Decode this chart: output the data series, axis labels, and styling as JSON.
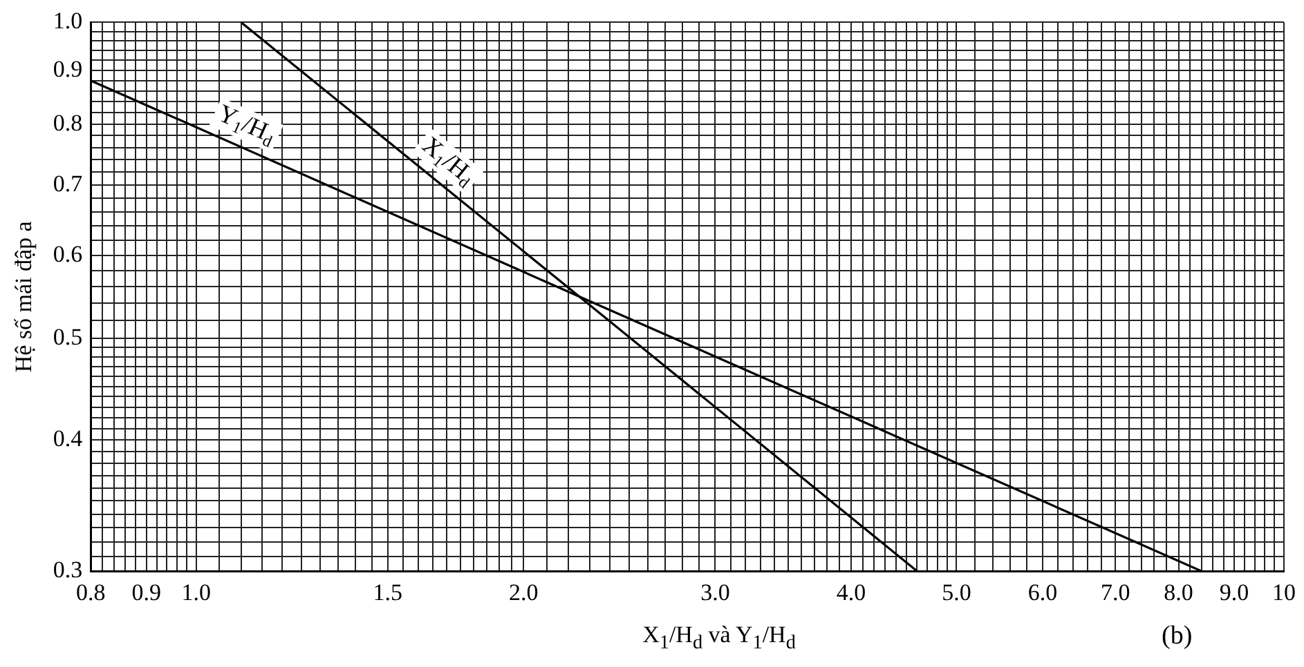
{
  "chart_data": {
    "type": "line",
    "ylabel": "Hệ số mái đập a",
    "xlabel": "X$_{1}$/H$_{d}$ và Y$_{1}$/H$_{d}$",
    "annotations": [
      "(b)"
    ],
    "log": "xy",
    "grid": true,
    "legend": false,
    "marker": "none",
    "line_style": "solid",
    "xlim": [
      0.8,
      10
    ],
    "ylim": [
      0.3,
      1.0
    ],
    "xticks": [
      {
        "value": 0.8,
        "label": "0.8"
      },
      {
        "value": 0.82,
        "label": null
      },
      {
        "value": 0.84,
        "label": null
      },
      {
        "value": 0.86,
        "label": null
      },
      {
        "value": 0.88,
        "label": null
      },
      {
        "value": 0.9,
        "label": "0.9"
      },
      {
        "value": 0.92,
        "label": null
      },
      {
        "value": 0.94,
        "label": null
      },
      {
        "value": 0.96,
        "label": null
      },
      {
        "value": 0.98,
        "label": null
      },
      {
        "value": 1.0,
        "label": "1.0"
      },
      {
        "value": 1.05,
        "label": null
      },
      {
        "value": 1.1,
        "label": null
      },
      {
        "value": 1.15,
        "label": null
      },
      {
        "value": 1.2,
        "label": null
      },
      {
        "value": 1.25,
        "label": null
      },
      {
        "value": 1.3,
        "label": null
      },
      {
        "value": 1.35,
        "label": null
      },
      {
        "value": 1.4,
        "label": null
      },
      {
        "value": 1.45,
        "label": null
      },
      {
        "value": 1.5,
        "label": "1.5"
      },
      {
        "value": 1.55,
        "label": null
      },
      {
        "value": 1.6,
        "label": null
      },
      {
        "value": 1.65,
        "label": null
      },
      {
        "value": 1.7,
        "label": null
      },
      {
        "value": 1.75,
        "label": null
      },
      {
        "value": 1.8,
        "label": null
      },
      {
        "value": 1.85,
        "label": null
      },
      {
        "value": 1.9,
        "label": null
      },
      {
        "value": 1.95,
        "label": null
      },
      {
        "value": 2.0,
        "label": "2.0"
      },
      {
        "value": 2.1,
        "label": null
      },
      {
        "value": 2.2,
        "label": null
      },
      {
        "value": 2.3,
        "label": null
      },
      {
        "value": 2.4,
        "label": null
      },
      {
        "value": 2.5,
        "label": null
      },
      {
        "value": 2.6,
        "label": null
      },
      {
        "value": 2.7,
        "label": null
      },
      {
        "value": 2.8,
        "label": null
      },
      {
        "value": 2.9,
        "label": null
      },
      {
        "value": 3.0,
        "label": "3.0"
      },
      {
        "value": 3.1,
        "label": null
      },
      {
        "value": 3.2,
        "label": null
      },
      {
        "value": 3.3,
        "label": null
      },
      {
        "value": 3.4,
        "label": null
      },
      {
        "value": 3.5,
        "label": null
      },
      {
        "value": 3.6,
        "label": null
      },
      {
        "value": 3.7,
        "label": null
      },
      {
        "value": 3.8,
        "label": null
      },
      {
        "value": 3.9,
        "label": null
      },
      {
        "value": 4.0,
        "label": "4.0"
      },
      {
        "value": 4.1,
        "label": null
      },
      {
        "value": 4.2,
        "label": null
      },
      {
        "value": 4.3,
        "label": null
      },
      {
        "value": 4.4,
        "label": null
      },
      {
        "value": 4.5,
        "label": null
      },
      {
        "value": 4.6,
        "label": null
      },
      {
        "value": 4.7,
        "label": null
      },
      {
        "value": 4.8,
        "label": null
      },
      {
        "value": 4.9,
        "label": null
      },
      {
        "value": 5.0,
        "label": "5.0"
      },
      {
        "value": 5.2,
        "label": null
      },
      {
        "value": 5.4,
        "label": null
      },
      {
        "value": 5.6,
        "label": null
      },
      {
        "value": 5.8,
        "label": null
      },
      {
        "value": 6.0,
        "label": "6.0"
      },
      {
        "value": 6.2,
        "label": null
      },
      {
        "value": 6.4,
        "label": null
      },
      {
        "value": 6.6,
        "label": null
      },
      {
        "value": 6.8,
        "label": null
      },
      {
        "value": 7.0,
        "label": "7.0"
      },
      {
        "value": 7.2,
        "label": null
      },
      {
        "value": 7.4,
        "label": null
      },
      {
        "value": 7.6,
        "label": null
      },
      {
        "value": 7.8,
        "label": null
      },
      {
        "value": 8.0,
        "label": "8.0"
      },
      {
        "value": 8.2,
        "label": null
      },
      {
        "value": 8.4,
        "label": null
      },
      {
        "value": 8.6,
        "label": null
      },
      {
        "value": 8.8,
        "label": null
      },
      {
        "value": 9.0,
        "label": "9.0"
      },
      {
        "value": 9.2,
        "label": null
      },
      {
        "value": 9.4,
        "label": null
      },
      {
        "value": 9.6,
        "label": null
      },
      {
        "value": 9.8,
        "label": null
      },
      {
        "value": 10,
        "label": "10"
      }
    ],
    "yticks": [
      {
        "value": 0.3,
        "label": "0.3"
      },
      {
        "value": 0.31,
        "label": null
      },
      {
        "value": 0.32,
        "label": null
      },
      {
        "value": 0.33,
        "label": null
      },
      {
        "value": 0.34,
        "label": null
      },
      {
        "value": 0.35,
        "label": null
      },
      {
        "value": 0.36,
        "label": null
      },
      {
        "value": 0.37,
        "label": null
      },
      {
        "value": 0.38,
        "label": null
      },
      {
        "value": 0.39,
        "label": null
      },
      {
        "value": 0.4,
        "label": "0.4"
      },
      {
        "value": 0.41,
        "label": null
      },
      {
        "value": 0.42,
        "label": null
      },
      {
        "value": 0.43,
        "label": null
      },
      {
        "value": 0.44,
        "label": null
      },
      {
        "value": 0.45,
        "label": null
      },
      {
        "value": 0.46,
        "label": null
      },
      {
        "value": 0.47,
        "label": null
      },
      {
        "value": 0.48,
        "label": null
      },
      {
        "value": 0.49,
        "label": null
      },
      {
        "value": 0.5,
        "label": "0.5"
      },
      {
        "value": 0.52,
        "label": null
      },
      {
        "value": 0.54,
        "label": null
      },
      {
        "value": 0.56,
        "label": null
      },
      {
        "value": 0.58,
        "label": null
      },
      {
        "value": 0.6,
        "label": "0.6"
      },
      {
        "value": 0.62,
        "label": null
      },
      {
        "value": 0.64,
        "label": null
      },
      {
        "value": 0.66,
        "label": null
      },
      {
        "value": 0.68,
        "label": null
      },
      {
        "value": 0.7,
        "label": "0.7"
      },
      {
        "value": 0.72,
        "label": null
      },
      {
        "value": 0.74,
        "label": null
      },
      {
        "value": 0.76,
        "label": null
      },
      {
        "value": 0.78,
        "label": null
      },
      {
        "value": 0.8,
        "label": "0.8"
      },
      {
        "value": 0.82,
        "label": null
      },
      {
        "value": 0.84,
        "label": null
      },
      {
        "value": 0.86,
        "label": null
      },
      {
        "value": 0.88,
        "label": null
      },
      {
        "value": 0.9,
        "label": "0.9"
      },
      {
        "value": 0.92,
        "label": null
      },
      {
        "value": 0.94,
        "label": null
      },
      {
        "value": 0.96,
        "label": null
      },
      {
        "value": 0.98,
        "label": null
      },
      {
        "value": 1.0,
        "label": "1.0"
      }
    ],
    "series": [
      {
        "name": "Y$_{1}$/H$_{d}$",
        "color": "#000000",
        "x": [
          0.8,
          2.25,
          8.4
        ],
        "values": [
          0.88,
          0.548,
          0.3
        ]
      },
      {
        "name": "X$_{1}$/H$_{d}$",
        "color": "#000000",
        "x": [
          1.1,
          2.25,
          4.6
        ],
        "values": [
          1.0,
          0.548,
          0.3
        ]
      }
    ]
  }
}
